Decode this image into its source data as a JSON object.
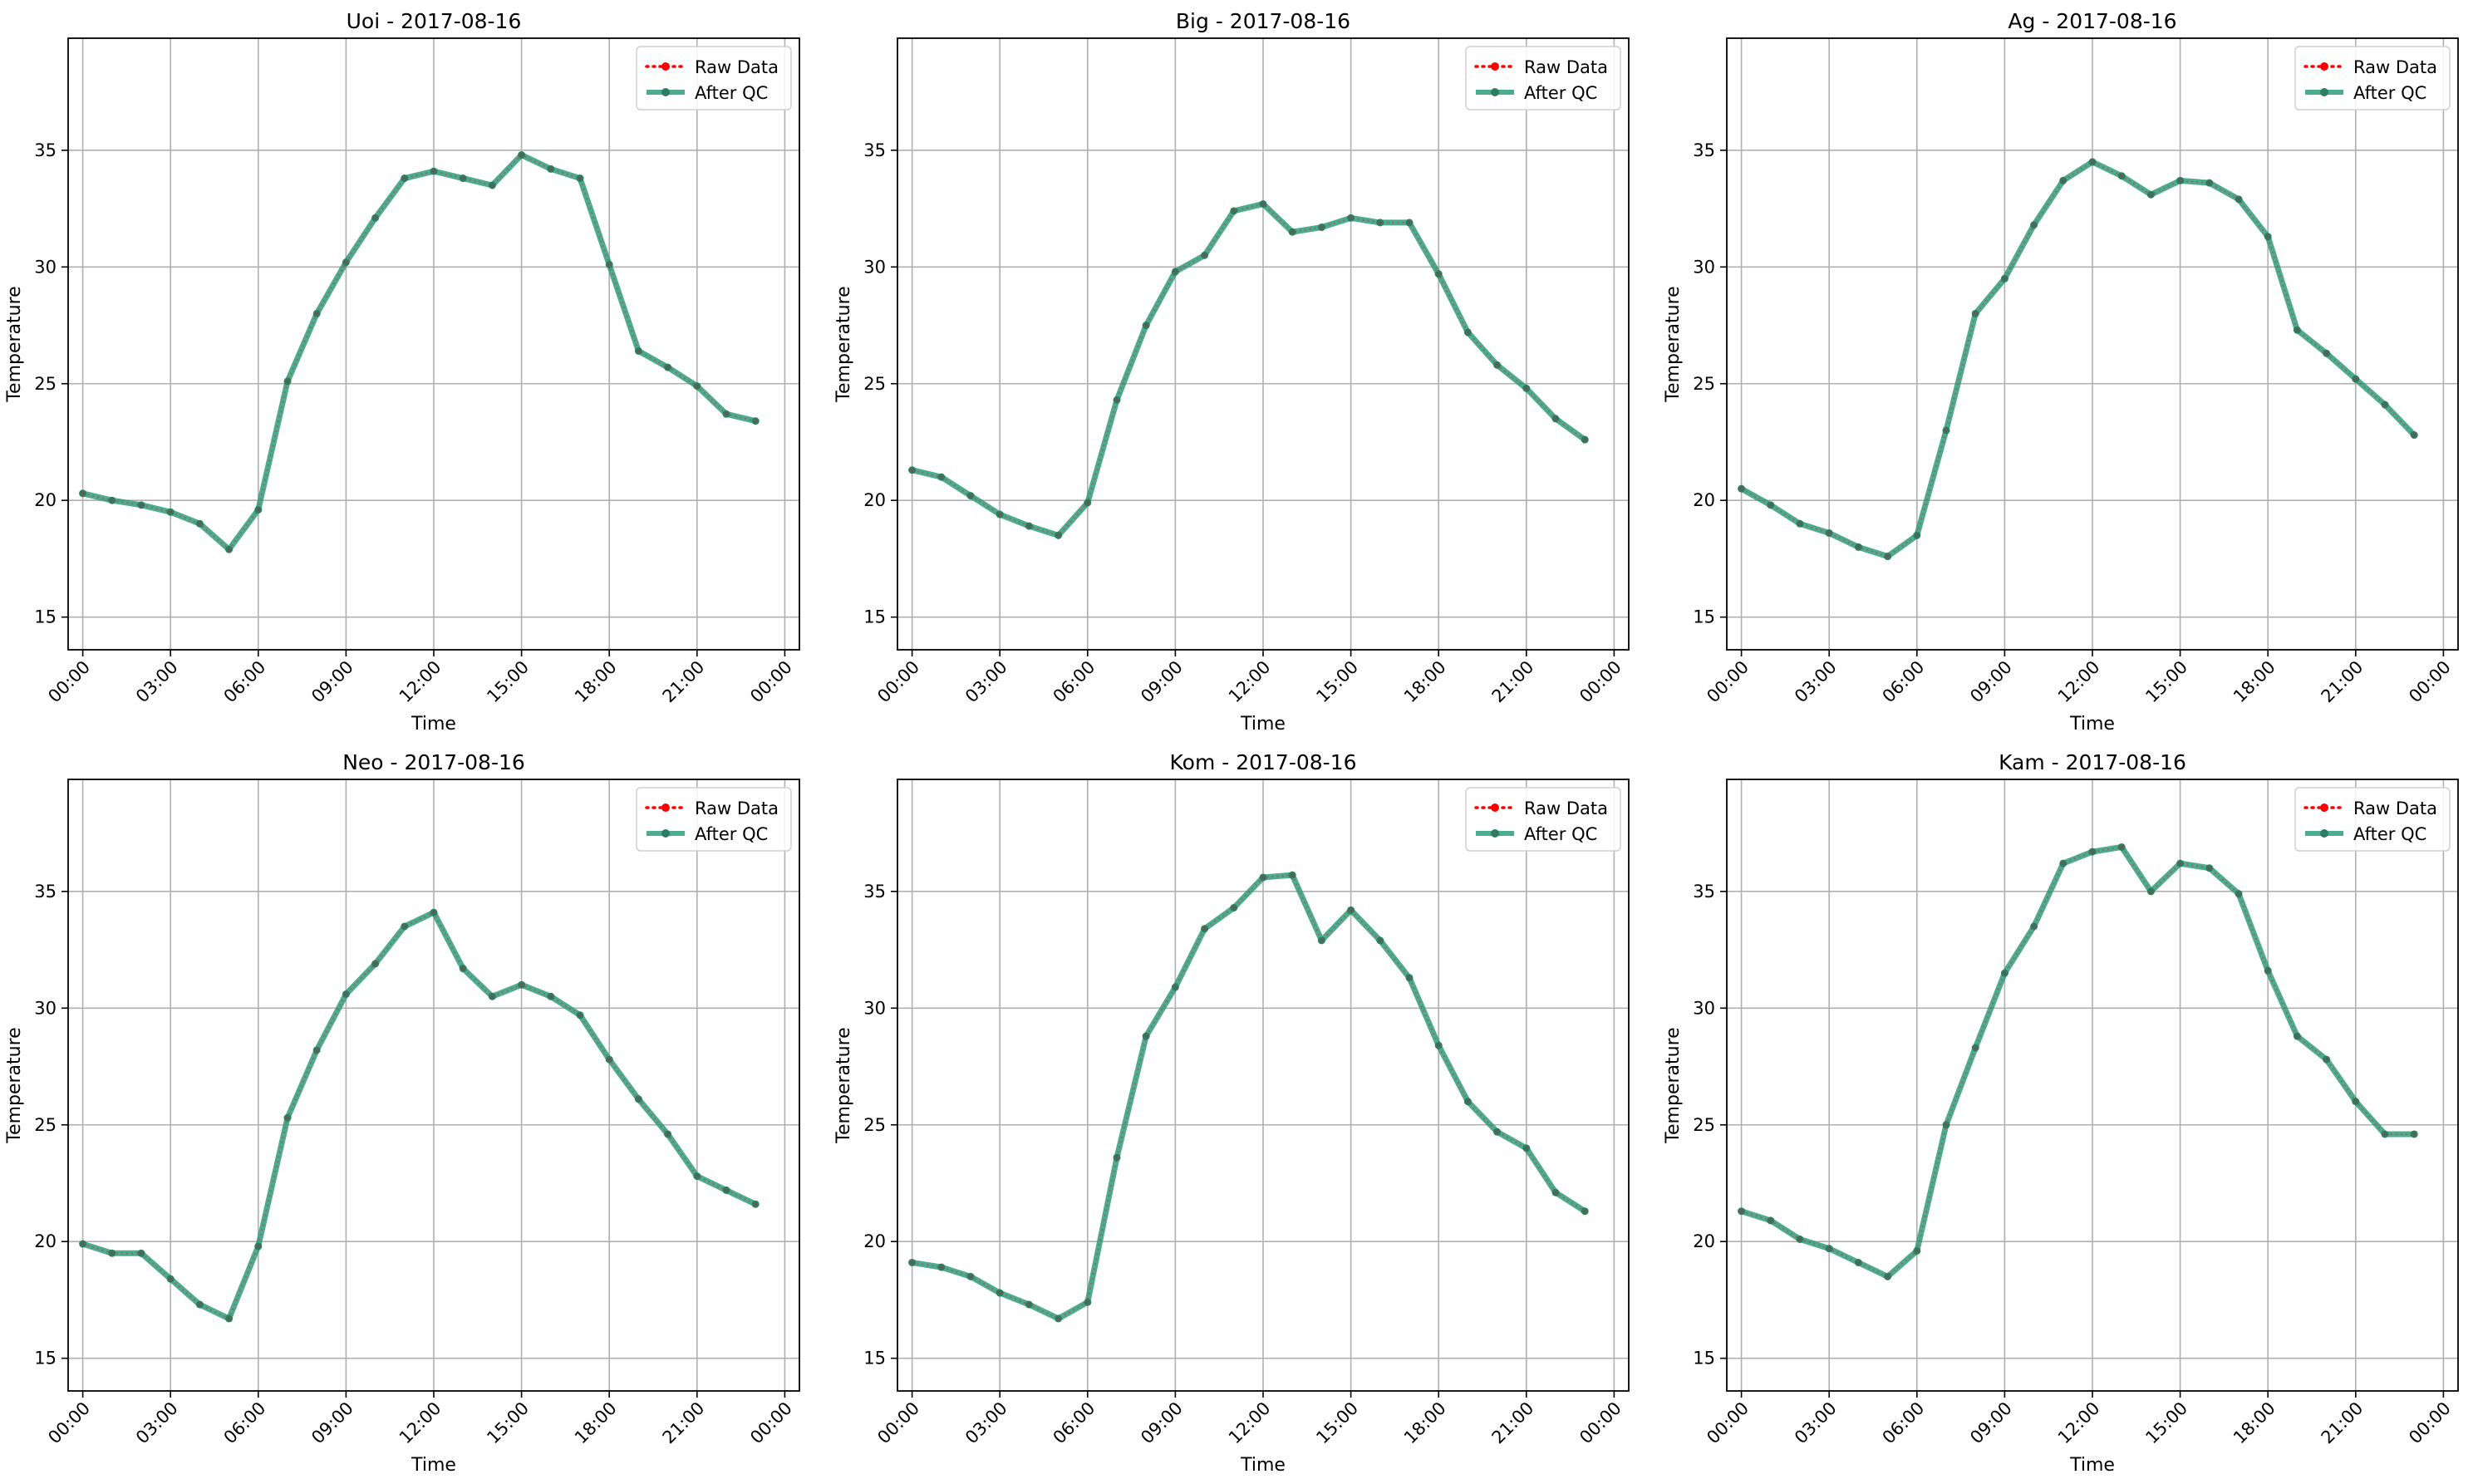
{
  "chart_data": [
    {
      "type": "line",
      "title": "Uoi - 2017-08-16",
      "xlabel": "Time",
      "ylabel": "Temperature",
      "ylim": [
        13.6,
        39.8
      ],
      "yticks": [
        15,
        20,
        25,
        30,
        35
      ],
      "xticks": [
        "00:00",
        "03:00",
        "06:00",
        "09:00",
        "12:00",
        "15:00",
        "18:00",
        "21:00",
        "00:00"
      ],
      "grid": true,
      "legend_position": "top-right",
      "x": [
        "00:00",
        "01:00",
        "02:00",
        "03:00",
        "04:00",
        "05:00",
        "06:00",
        "07:00",
        "08:00",
        "09:00",
        "10:00",
        "11:00",
        "12:00",
        "13:00",
        "14:00",
        "15:00",
        "16:00",
        "17:00",
        "18:00",
        "19:00",
        "20:00",
        "21:00",
        "22:00",
        "23:00"
      ],
      "series": [
        {
          "name": "Raw Data",
          "values": [
            20.3,
            20.0,
            19.8,
            19.5,
            19.0,
            17.9,
            19.6,
            25.1,
            28.0,
            30.2,
            32.1,
            33.8,
            34.1,
            33.8,
            33.5,
            34.8,
            34.2,
            33.8,
            30.1,
            26.4,
            25.7,
            24.9,
            23.7,
            23.4
          ]
        },
        {
          "name": "After QC",
          "values": [
            20.3,
            20.0,
            19.8,
            19.5,
            19.0,
            17.9,
            19.6,
            25.1,
            28.0,
            30.2,
            32.1,
            33.8,
            34.1,
            33.8,
            33.5,
            34.8,
            34.2,
            33.8,
            30.1,
            26.4,
            25.7,
            24.9,
            23.7,
            23.4
          ]
        }
      ]
    },
    {
      "type": "line",
      "title": "Big - 2017-08-16",
      "xlabel": "Time",
      "ylabel": "Temperature",
      "ylim": [
        13.6,
        39.8
      ],
      "yticks": [
        15,
        20,
        25,
        30,
        35
      ],
      "xticks": [
        "00:00",
        "03:00",
        "06:00",
        "09:00",
        "12:00",
        "15:00",
        "18:00",
        "21:00",
        "00:00"
      ],
      "grid": true,
      "legend_position": "top-right",
      "x": [
        "00:00",
        "01:00",
        "02:00",
        "03:00",
        "04:00",
        "05:00",
        "06:00",
        "07:00",
        "08:00",
        "09:00",
        "10:00",
        "11:00",
        "12:00",
        "13:00",
        "14:00",
        "15:00",
        "16:00",
        "17:00",
        "18:00",
        "19:00",
        "20:00",
        "21:00",
        "22:00",
        "23:00"
      ],
      "series": [
        {
          "name": "Raw Data",
          "values": [
            21.3,
            21.0,
            20.2,
            19.4,
            18.9,
            18.5,
            19.9,
            24.3,
            27.5,
            29.8,
            30.5,
            32.4,
            32.7,
            31.5,
            31.7,
            32.1,
            31.9,
            31.9,
            29.7,
            27.2,
            25.8,
            24.8,
            23.5,
            22.6
          ]
        },
        {
          "name": "After QC",
          "values": [
            21.3,
            21.0,
            20.2,
            19.4,
            18.9,
            18.5,
            19.9,
            24.3,
            27.5,
            29.8,
            30.5,
            32.4,
            32.7,
            31.5,
            31.7,
            32.1,
            31.9,
            31.9,
            29.7,
            27.2,
            25.8,
            24.8,
            23.5,
            22.6
          ]
        }
      ]
    },
    {
      "type": "line",
      "title": "Ag - 2017-08-16",
      "xlabel": "Time",
      "ylabel": "Temperature",
      "ylim": [
        13.6,
        39.8
      ],
      "yticks": [
        15,
        20,
        25,
        30,
        35
      ],
      "xticks": [
        "00:00",
        "03:00",
        "06:00",
        "09:00",
        "12:00",
        "15:00",
        "18:00",
        "21:00",
        "00:00"
      ],
      "grid": true,
      "legend_position": "top-right",
      "x": [
        "00:00",
        "01:00",
        "02:00",
        "03:00",
        "04:00",
        "05:00",
        "06:00",
        "07:00",
        "08:00",
        "09:00",
        "10:00",
        "11:00",
        "12:00",
        "13:00",
        "14:00",
        "15:00",
        "16:00",
        "17:00",
        "18:00",
        "19:00",
        "20:00",
        "21:00",
        "22:00",
        "23:00"
      ],
      "series": [
        {
          "name": "Raw Data",
          "values": [
            20.5,
            19.8,
            19.0,
            18.6,
            18.0,
            17.6,
            18.5,
            23.0,
            28.0,
            29.5,
            31.8,
            33.7,
            34.5,
            33.9,
            33.1,
            33.7,
            33.6,
            32.9,
            31.3,
            27.3,
            26.3,
            25.2,
            24.1,
            22.8
          ]
        },
        {
          "name": "After QC",
          "values": [
            20.5,
            19.8,
            19.0,
            18.6,
            18.0,
            17.6,
            18.5,
            23.0,
            28.0,
            29.5,
            31.8,
            33.7,
            34.5,
            33.9,
            33.1,
            33.7,
            33.6,
            32.9,
            31.3,
            27.3,
            26.3,
            25.2,
            24.1,
            22.8
          ]
        }
      ]
    },
    {
      "type": "line",
      "title": "Neo - 2017-08-16",
      "xlabel": "Time",
      "ylabel": "Temperature",
      "ylim": [
        13.6,
        39.8
      ],
      "yticks": [
        15,
        20,
        25,
        30,
        35
      ],
      "xticks": [
        "00:00",
        "03:00",
        "06:00",
        "09:00",
        "12:00",
        "15:00",
        "18:00",
        "21:00",
        "00:00"
      ],
      "grid": true,
      "legend_position": "top-right",
      "x": [
        "00:00",
        "01:00",
        "02:00",
        "03:00",
        "04:00",
        "05:00",
        "06:00",
        "07:00",
        "08:00",
        "09:00",
        "10:00",
        "11:00",
        "12:00",
        "13:00",
        "14:00",
        "15:00",
        "16:00",
        "17:00",
        "18:00",
        "19:00",
        "20:00",
        "21:00",
        "22:00",
        "23:00"
      ],
      "series": [
        {
          "name": "Raw Data",
          "values": [
            19.9,
            19.5,
            19.5,
            18.4,
            17.3,
            16.7,
            19.8,
            25.3,
            28.2,
            30.6,
            31.9,
            33.5,
            34.1,
            31.7,
            30.5,
            31.0,
            30.5,
            29.7,
            27.8,
            26.1,
            24.6,
            22.8,
            22.2,
            21.6
          ]
        },
        {
          "name": "After QC",
          "values": [
            19.9,
            19.5,
            19.5,
            18.4,
            17.3,
            16.7,
            19.8,
            25.3,
            28.2,
            30.6,
            31.9,
            33.5,
            34.1,
            31.7,
            30.5,
            31.0,
            30.5,
            29.7,
            27.8,
            26.1,
            24.6,
            22.8,
            22.2,
            21.6
          ]
        }
      ]
    },
    {
      "type": "line",
      "title": "Kom - 2017-08-16",
      "xlabel": "Time",
      "ylabel": "Temperature",
      "ylim": [
        13.6,
        39.8
      ],
      "yticks": [
        15,
        20,
        25,
        30,
        35
      ],
      "xticks": [
        "00:00",
        "03:00",
        "06:00",
        "09:00",
        "12:00",
        "15:00",
        "18:00",
        "21:00",
        "00:00"
      ],
      "grid": true,
      "legend_position": "top-right",
      "x": [
        "00:00",
        "01:00",
        "02:00",
        "03:00",
        "04:00",
        "05:00",
        "06:00",
        "07:00",
        "08:00",
        "09:00",
        "10:00",
        "11:00",
        "12:00",
        "13:00",
        "14:00",
        "15:00",
        "16:00",
        "17:00",
        "18:00",
        "19:00",
        "20:00",
        "21:00",
        "22:00",
        "23:00"
      ],
      "series": [
        {
          "name": "Raw Data",
          "values": [
            19.1,
            18.9,
            18.5,
            17.8,
            17.3,
            16.7,
            17.4,
            23.6,
            28.8,
            30.9,
            33.4,
            34.3,
            35.6,
            35.7,
            32.9,
            34.2,
            32.9,
            31.3,
            28.4,
            26.0,
            24.7,
            24.0,
            22.1,
            21.3
          ]
        },
        {
          "name": "After QC",
          "values": [
            19.1,
            18.9,
            18.5,
            17.8,
            17.3,
            16.7,
            17.4,
            23.6,
            28.8,
            30.9,
            33.4,
            34.3,
            35.6,
            35.7,
            32.9,
            34.2,
            32.9,
            31.3,
            28.4,
            26.0,
            24.7,
            24.0,
            22.1,
            21.3
          ]
        }
      ]
    },
    {
      "type": "line",
      "title": "Kam - 2017-08-16",
      "xlabel": "Time",
      "ylabel": "Temperature",
      "ylim": [
        13.6,
        39.8
      ],
      "yticks": [
        15,
        20,
        25,
        30,
        35
      ],
      "xticks": [
        "00:00",
        "03:00",
        "06:00",
        "09:00",
        "12:00",
        "15:00",
        "18:00",
        "21:00",
        "00:00"
      ],
      "grid": true,
      "legend_position": "top-right",
      "x": [
        "00:00",
        "01:00",
        "02:00",
        "03:00",
        "04:00",
        "05:00",
        "06:00",
        "07:00",
        "08:00",
        "09:00",
        "10:00",
        "11:00",
        "12:00",
        "13:00",
        "14:00",
        "15:00",
        "16:00",
        "17:00",
        "18:00",
        "19:00",
        "20:00",
        "21:00",
        "22:00",
        "23:00"
      ],
      "series": [
        {
          "name": "Raw Data",
          "values": [
            21.3,
            20.9,
            20.1,
            19.7,
            19.1,
            18.5,
            19.6,
            25.0,
            28.3,
            31.5,
            33.5,
            36.2,
            36.7,
            36.9,
            35.0,
            36.2,
            36.0,
            34.9,
            31.6,
            28.8,
            27.8,
            26.0,
            24.6,
            24.6
          ]
        },
        {
          "name": "After QC",
          "values": [
            21.3,
            20.9,
            20.1,
            19.7,
            19.1,
            18.5,
            19.6,
            25.0,
            28.3,
            31.5,
            33.5,
            36.2,
            36.7,
            36.9,
            35.0,
            36.2,
            36.0,
            34.9,
            31.6,
            28.8,
            27.8,
            26.0,
            24.6,
            24.6
          ]
        }
      ]
    }
  ],
  "colors": {
    "raw_data": "#ff0000",
    "after_qc": "#2e9c7c",
    "after_qc_marker": "#2e7d63",
    "grid": "#b0b0b0",
    "axes": "#000000"
  }
}
